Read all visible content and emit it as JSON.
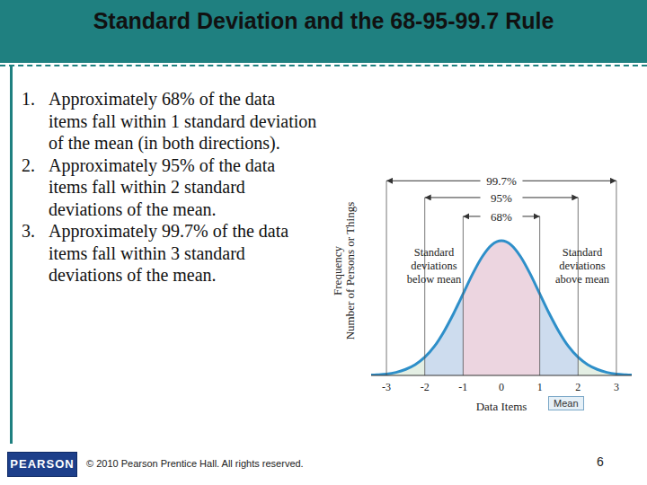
{
  "title": "Standard Deviation and the 68-95-99.7 Rule",
  "list": [
    {
      "number": "1.",
      "text": "Approximately 68% of the data items fall within 1 standard deviation of the mean (in both directions)."
    },
    {
      "number": "2.",
      "text": "Approximately 95% of the data items fall within 2 standard deviations of the mean."
    },
    {
      "number": "3.",
      "text": "Approximately 99.7% of the data items fall within 3 standard deviations of the mean."
    }
  ],
  "footer": {
    "logo": "PEARSON",
    "copyright": "© 2010 Pearson Prentice Hall. All rights reserved.",
    "page": "6"
  },
  "chart_data": {
    "type": "area",
    "xlabel": "Data Items",
    "ylabel": [
      "Frequency",
      "Number of Persons or Things"
    ],
    "x": [
      -3.5,
      -3.25,
      -3,
      -2.75,
      -2.5,
      -2.25,
      -2,
      -1.75,
      -1.5,
      -1.25,
      -1,
      -0.75,
      -0.5,
      -0.25,
      0,
      0.25,
      0.5,
      0.75,
      1,
      1.25,
      1.5,
      1.75,
      2,
      2.25,
      2.5,
      2.75,
      3,
      3.25,
      3.5
    ],
    "values": [
      0.001,
      0.002,
      0.004,
      0.009,
      0.018,
      0.032,
      0.054,
      0.086,
      0.13,
      0.183,
      0.242,
      0.301,
      0.352,
      0.387,
      0.399,
      0.387,
      0.352,
      0.301,
      0.242,
      0.183,
      0.13,
      0.086,
      0.054,
      0.032,
      0.018,
      0.009,
      0.004,
      0.002,
      0.001
    ],
    "color": "#2e8fc9",
    "xlim": [
      -3.4,
      3.4
    ],
    "xticks": [
      -3,
      -2,
      -1,
      0,
      1,
      2,
      3
    ],
    "ylim": [
      0,
      0.62
    ],
    "tick_labels": "x",
    "grid": false,
    "bands": [
      {
        "label": "99.7%",
        "sd": 3,
        "color": "#e4efe4"
      },
      {
        "label": "95%",
        "sd": 2,
        "color": "#cddcee"
      },
      {
        "label": "68%",
        "sd": 1,
        "color": "#ecd5e0"
      }
    ],
    "annotations": {
      "below": "Standard deviations below mean",
      "above": "Standard deviations above mean",
      "mean": "Mean"
    }
  }
}
